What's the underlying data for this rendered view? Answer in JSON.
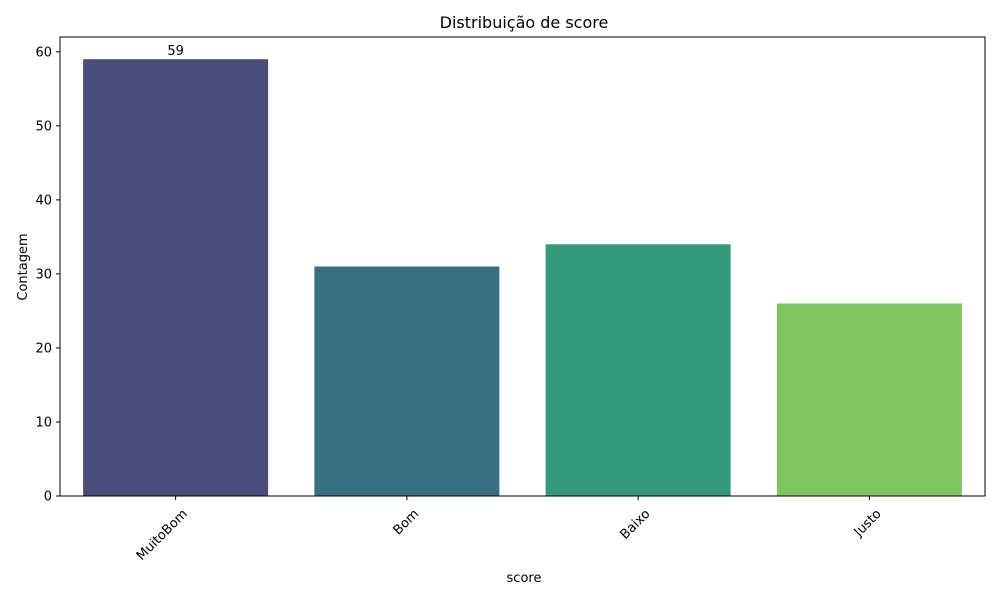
{
  "chart_data": {
    "type": "bar",
    "title": "Distribuição de score",
    "xlabel": "score",
    "ylabel": "Contagem",
    "categories": [
      "MuitoBom",
      "Bom",
      "Baixo",
      "Justo"
    ],
    "values": [
      59,
      31,
      34,
      26
    ],
    "colors": [
      "#4a4c7c",
      "#386f82",
      "#35997c",
      "#80c45f"
    ],
    "ylim": [
      0,
      62
    ],
    "yticks": [
      0,
      10,
      20,
      30,
      40,
      50,
      60
    ],
    "data_labels": [
      {
        "category": "MuitoBom",
        "text": "59"
      }
    ],
    "grid": false,
    "legend": "none"
  }
}
